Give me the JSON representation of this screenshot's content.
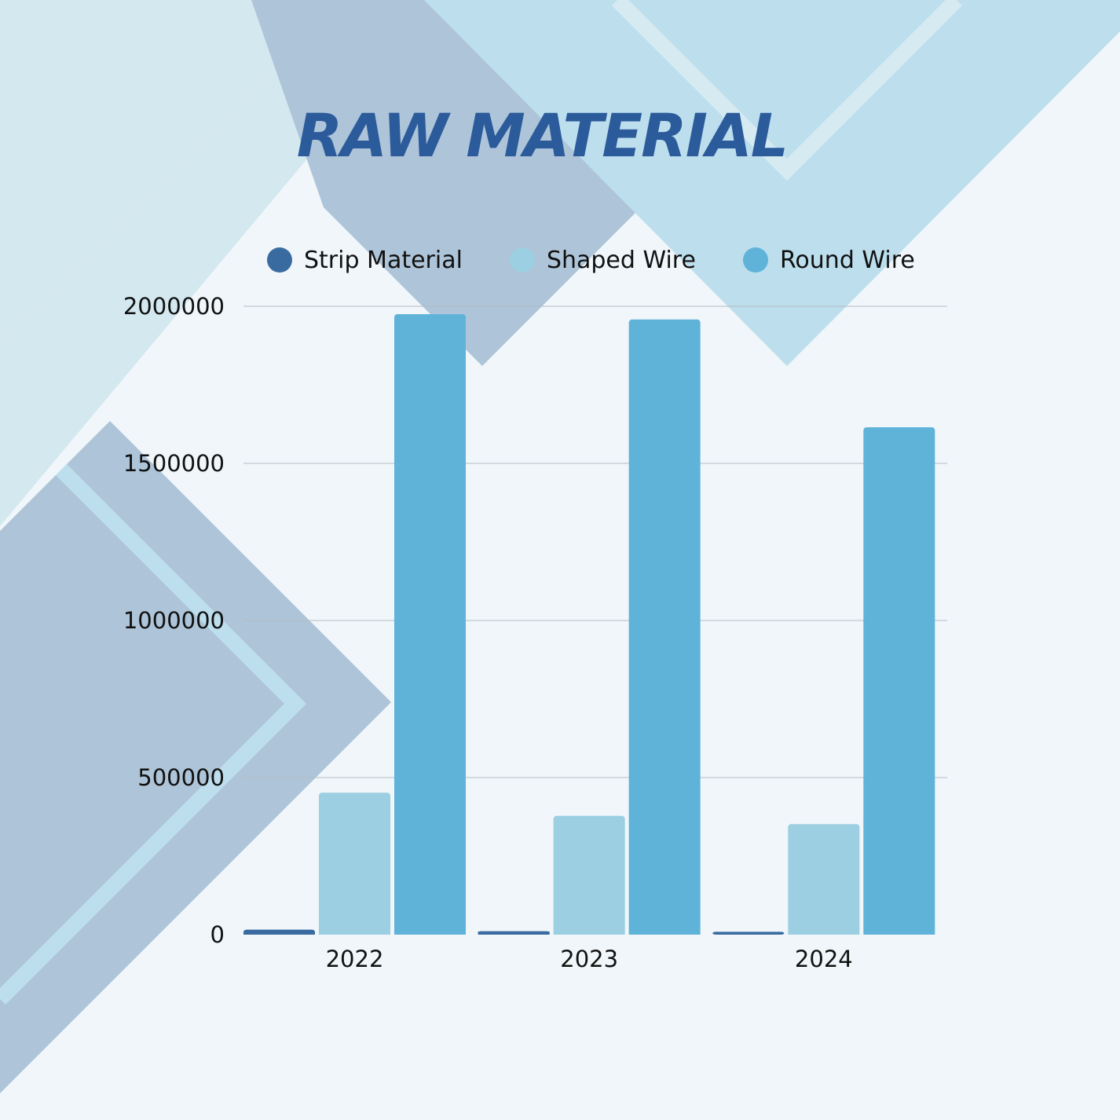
{
  "title": "RAW MATERIAL",
  "colors": {
    "title": "#2b5b9a",
    "background": "#f0f6fa",
    "grid": "#b4bcc4",
    "deco_light": "#d4e8f0",
    "deco_mid": "#aec4d8",
    "deco_sky": "#bcdeed"
  },
  "chart_data": {
    "type": "bar",
    "title": "RAW MATERIAL",
    "categories": [
      "2022",
      "2023",
      "2024"
    ],
    "series": [
      {
        "name": "Strip Material",
        "color": "#3a6ba0",
        "values": [
          16000,
          11000,
          9000
        ]
      },
      {
        "name": "Shaped Wire",
        "color": "#9ccfe2",
        "values": [
          452000,
          378000,
          352000
        ]
      },
      {
        "name": "Round Wire",
        "color": "#5fb3d9",
        "values": [
          1975000,
          1958000,
          1615000
        ]
      }
    ],
    "ylim": [
      0,
      2000000
    ],
    "yticks": [
      "0",
      "500000",
      "1000000",
      "1500000",
      "2000000"
    ],
    "xlabel": "",
    "ylabel": "",
    "grid": true,
    "legend": "top"
  }
}
